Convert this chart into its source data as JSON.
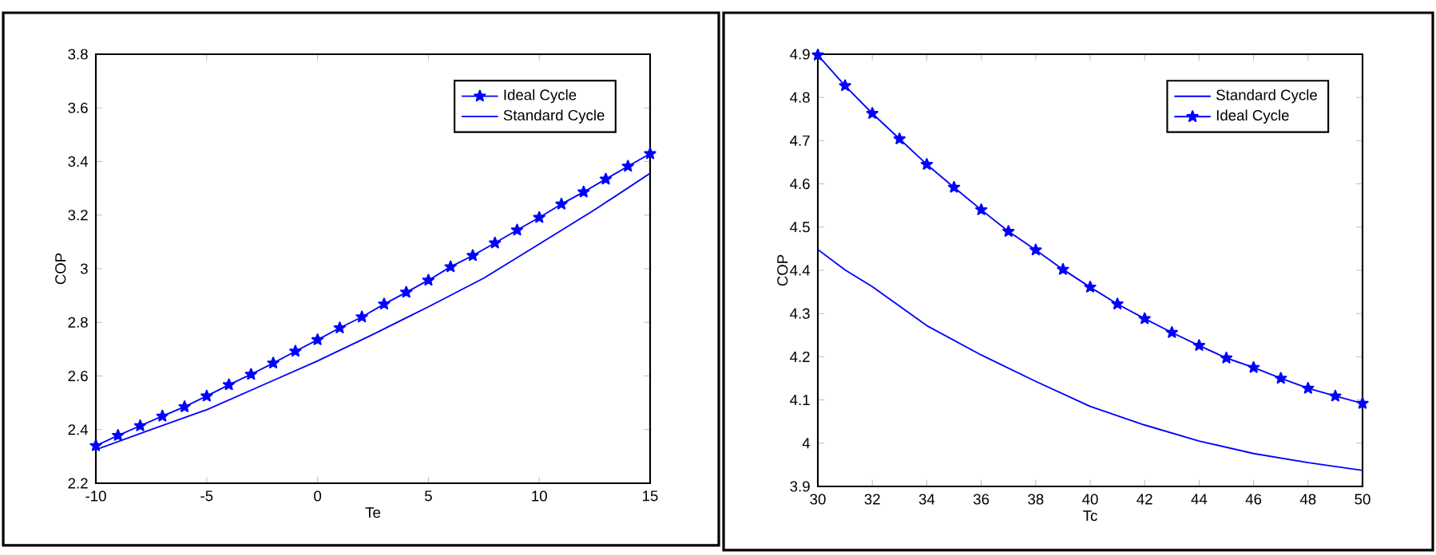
{
  "chart_data": [
    {
      "type": "line",
      "xlabel": "Te",
      "ylabel": "COP",
      "xlim": [
        -10,
        15
      ],
      "ylim": [
        2.2,
        3.8
      ],
      "xticks": [
        -10,
        -5,
        0,
        5,
        10,
        15
      ],
      "yticks": [
        2.2,
        2.4,
        2.6,
        2.8,
        3,
        3.2,
        3.4,
        3.6,
        3.8
      ],
      "legend": "top right",
      "series": [
        {
          "name": "Ideal Cycle",
          "color": "#0000ff",
          "marker": "star",
          "x": [
            -10,
            -9,
            -8,
            -7,
            -6,
            -5,
            -4,
            -3,
            -2,
            -1,
            0,
            1,
            2,
            3,
            4,
            5,
            6,
            7,
            8,
            9,
            10,
            11,
            12,
            13,
            14,
            15
          ],
          "values": [
            2.34,
            2.378,
            2.414,
            2.45,
            2.485,
            2.525,
            2.567,
            2.606,
            2.648,
            2.692,
            2.735,
            2.779,
            2.82,
            2.868,
            2.912,
            2.957,
            3.007,
            3.049,
            3.096,
            3.144,
            3.191,
            3.241,
            3.286,
            3.334,
            3.382,
            3.429
          ]
        },
        {
          "name": "Standard Cycle",
          "color": "#0000ff",
          "x": [
            -10,
            -7.5,
            -5,
            -2.5,
            0,
            2.5,
            5,
            7.5,
            10,
            12.5,
            15
          ],
          "values": [
            2.325,
            2.4,
            2.474,
            2.565,
            2.656,
            2.755,
            2.858,
            2.965,
            3.092,
            3.22,
            3.356
          ]
        }
      ]
    },
    {
      "type": "line",
      "xlabel": "Tc",
      "ylabel": "COP",
      "xlim": [
        30,
        50
      ],
      "ylim": [
        3.9,
        4.9
      ],
      "xticks": [
        30,
        32,
        34,
        36,
        38,
        40,
        42,
        44,
        46,
        48,
        50
      ],
      "yticks": [
        3.9,
        4,
        4.1,
        4.2,
        4.3,
        4.4,
        4.5,
        4.6,
        4.7,
        4.8,
        4.9
      ],
      "legend": "top right",
      "series": [
        {
          "name": "Standard Cycle",
          "color": "#0000ff",
          "x": [
            30,
            31,
            32,
            34,
            36,
            38,
            40,
            42,
            44,
            46,
            48,
            50
          ],
          "values": [
            4.448,
            4.401,
            4.362,
            4.272,
            4.204,
            4.143,
            4.085,
            4.042,
            4.005,
            3.976,
            3.955,
            3.937
          ]
        },
        {
          "name": "Ideal Cycle",
          "color": "#0000ff",
          "marker": "star",
          "x": [
            30,
            31,
            32,
            33,
            34,
            35,
            36,
            37,
            38,
            39,
            40,
            41,
            42,
            43,
            44,
            45,
            46,
            47,
            48,
            49,
            50
          ],
          "values": [
            4.898,
            4.827,
            4.763,
            4.704,
            4.645,
            4.592,
            4.54,
            4.49,
            4.447,
            4.402,
            4.361,
            4.322,
            4.288,
            4.256,
            4.226,
            4.197,
            4.175,
            4.15,
            4.127,
            4.109,
            4.092
          ]
        }
      ]
    }
  ]
}
